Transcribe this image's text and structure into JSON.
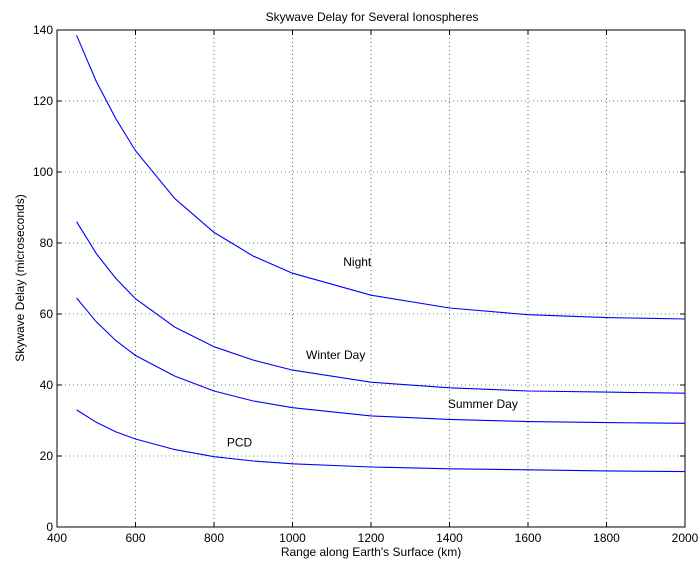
{
  "chart_data": {
    "type": "line",
    "title": "Skywave Delay for Several Ionospheres",
    "xlabel": "Range along Earth's Surface (km)",
    "ylabel": "Skywave Delay (microseconds)",
    "xlim": [
      400,
      2000
    ],
    "ylim": [
      0,
      140
    ],
    "xticks": [
      400,
      600,
      800,
      1000,
      1200,
      1400,
      1600,
      1800,
      2000
    ],
    "yticks": [
      0,
      20,
      40,
      60,
      80,
      100,
      120,
      140
    ],
    "grid": true,
    "line_color": "#0000ff",
    "series": [
      {
        "name": "Night",
        "x": [
          450,
          500,
          550,
          600,
          700,
          800,
          900,
          1000,
          1200,
          1400,
          1600,
          1800,
          2000
        ],
        "values": [
          138.5,
          125.5,
          115,
          106,
          92.5,
          83,
          76.3,
          71.5,
          65.3,
          61.7,
          59.8,
          59.0,
          58.6
        ]
      },
      {
        "name": "Winter Day",
        "x": [
          450,
          500,
          550,
          600,
          700,
          800,
          900,
          1000,
          1200,
          1400,
          1600,
          1800,
          2000
        ],
        "values": [
          86,
          77,
          70,
          64.3,
          56.3,
          50.8,
          47,
          44.2,
          40.8,
          39.2,
          38.3,
          38.0,
          37.7
        ]
      },
      {
        "name": "Summer Day",
        "x": [
          450,
          500,
          550,
          600,
          700,
          800,
          900,
          1000,
          1200,
          1400,
          1600,
          1800,
          2000
        ],
        "values": [
          64.5,
          57.8,
          52.5,
          48.3,
          42.5,
          38.3,
          35.5,
          33.6,
          31.3,
          30.3,
          29.7,
          29.4,
          29.2
        ]
      },
      {
        "name": "PCD",
        "x": [
          450,
          500,
          550,
          600,
          700,
          800,
          900,
          1000,
          1200,
          1400,
          1600,
          1800,
          2000
        ],
        "values": [
          33,
          29.5,
          26.8,
          24.8,
          21.8,
          19.8,
          18.6,
          17.8,
          16.9,
          16.4,
          16.1,
          15.8,
          15.6
        ]
      }
    ],
    "annotations": [
      {
        "text": "Night",
        "x": 1165,
        "y": 73.5
      },
      {
        "text": "Winter Day",
        "x": 1110,
        "y": 47.3
      },
      {
        "text": "Summer Day",
        "x": 1485,
        "y": 33.5
      },
      {
        "text": "PCD",
        "x": 865,
        "y": 22.7
      }
    ]
  }
}
